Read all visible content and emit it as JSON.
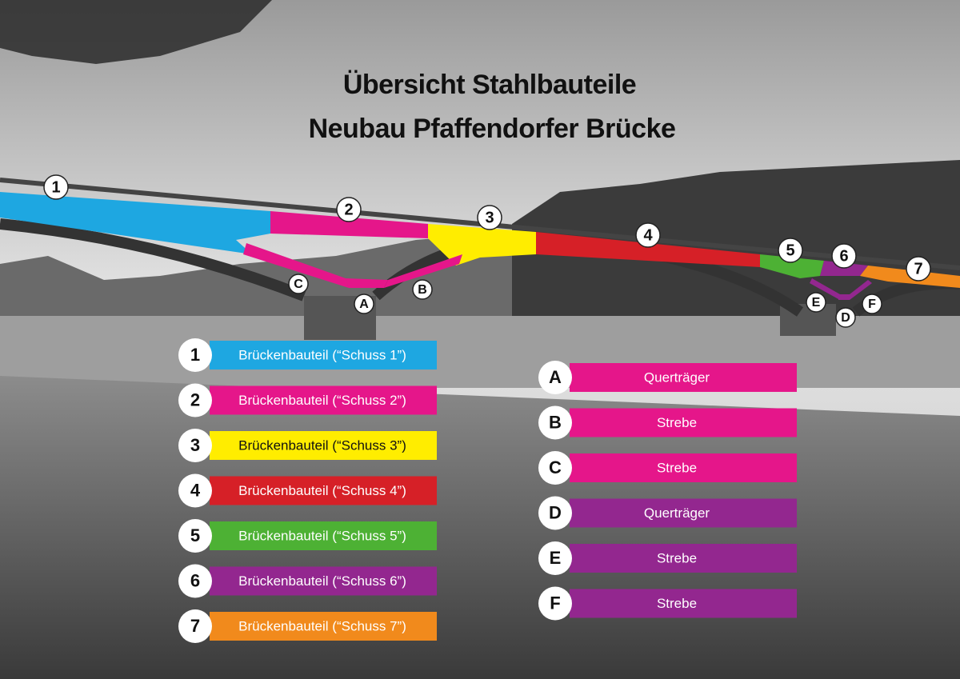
{
  "title": [
    "Übersicht Stahlbauteile",
    "Neubau Pfaffendorfer Brücke"
  ],
  "parts": [
    {
      "id": "1",
      "label": "Brückenbauteil (“Schuss 1”)",
      "color": "#1ea7e1"
    },
    {
      "id": "2",
      "label": "Brückenbauteil (“Schuss 2”)",
      "color": "#e5168a"
    },
    {
      "id": "3",
      "label": "Brückenbauteil (“Schuss 3”)",
      "color": "#ffed00"
    },
    {
      "id": "4",
      "label": "Brückenbauteil (“Schuss 4”)",
      "color": "#d62027"
    },
    {
      "id": "5",
      "label": "Brückenbauteil (“Schuss 5”)",
      "color": "#4db134"
    },
    {
      "id": "6",
      "label": "Brückenbauteil (“Schuss 6”)",
      "color": "#93278f"
    },
    {
      "id": "7",
      "label": "Brückenbauteil (“Schuss 7”)",
      "color": "#f18a1c"
    }
  ],
  "members": [
    {
      "id": "A",
      "label": "Querträger",
      "color": "#e5168a"
    },
    {
      "id": "B",
      "label": "Strebe",
      "color": "#e5168a"
    },
    {
      "id": "C",
      "label": "Strebe",
      "color": "#e5168a"
    },
    {
      "id": "D",
      "label": "Querträger",
      "color": "#93278f"
    },
    {
      "id": "E",
      "label": "Strebe",
      "color": "#93278f"
    },
    {
      "id": "F",
      "label": "Strebe",
      "color": "#93278f"
    }
  ]
}
